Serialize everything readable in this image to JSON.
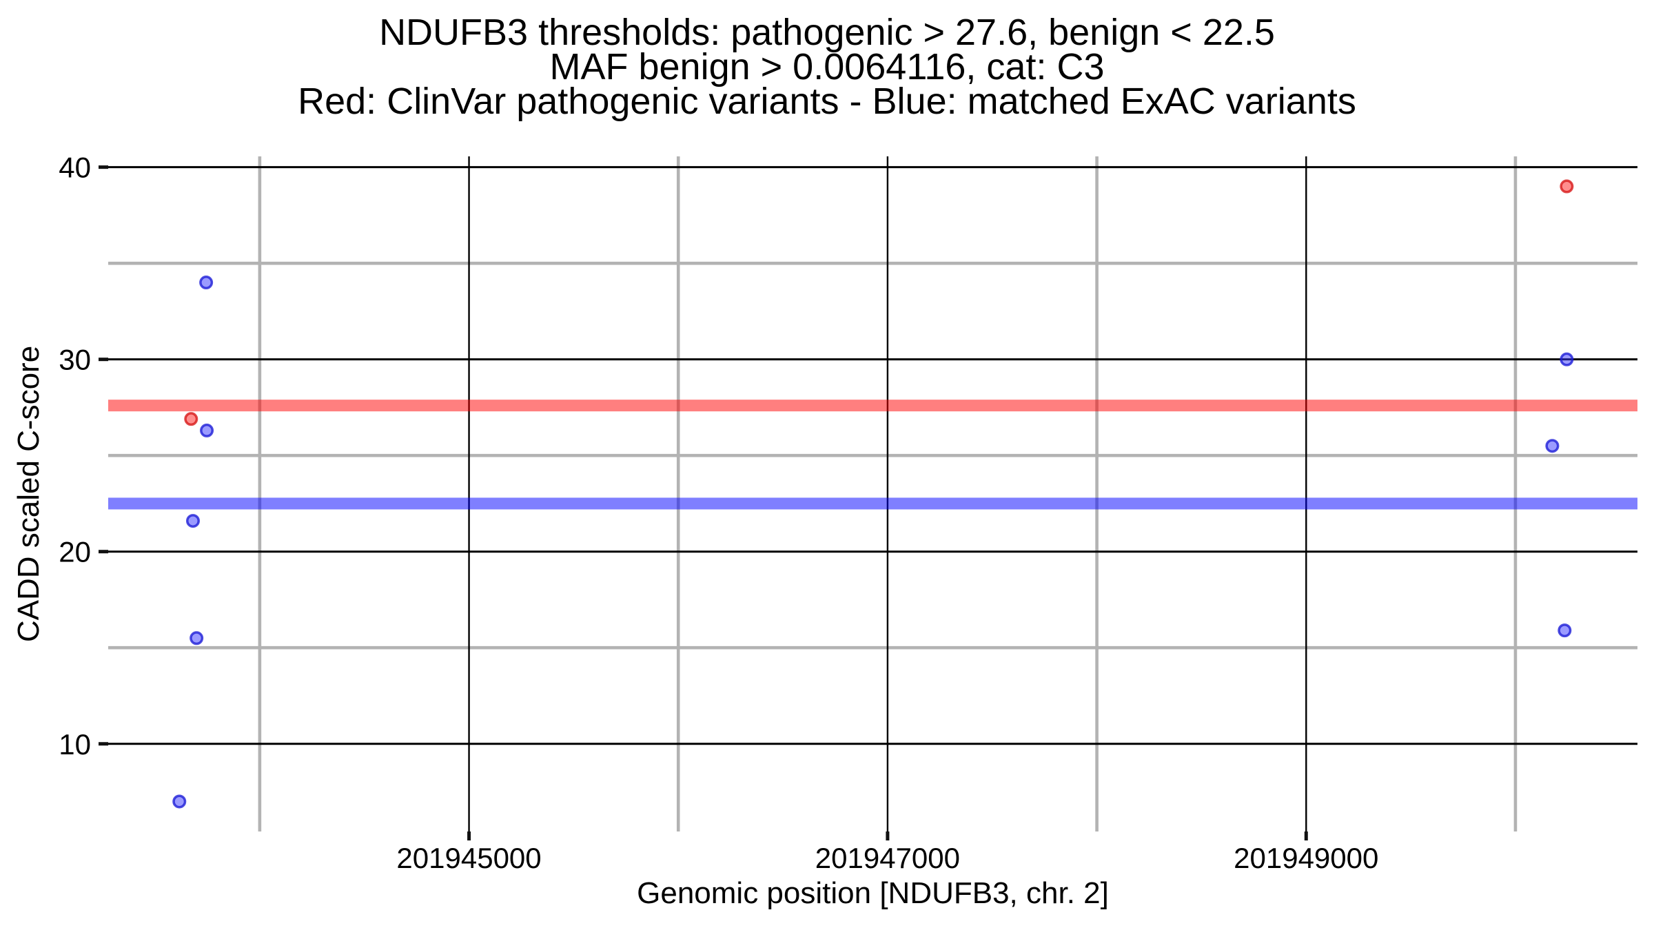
{
  "chart_data": {
    "type": "scatter",
    "title": "NDUFB3 thresholds: pathogenic > 27.6, benign < 22.5",
    "subtitle": "MAF benign > 0.0064116, cat: C3",
    "legend_note": "Red: ClinVar pathogenic variants - Blue: matched ExAC variants",
    "xlabel": "Genomic position [NDUFB3, chr. 2]",
    "ylabel": "CADD scaled C-score",
    "gene": "NDUFB3",
    "chromosome": "2",
    "category": "C3",
    "maf_benign_threshold": 0.0064116,
    "xlim": [
      201943276,
      201950583
    ],
    "ylim": [
      5.44,
      40.56
    ],
    "x_ticks": [
      201945000,
      201947000,
      201949000
    ],
    "x_tick_labels": [
      "201945000",
      "201947000",
      "201949000"
    ],
    "x_minor_gridlines": [
      201944000,
      201946000,
      201948000,
      201950000
    ],
    "y_ticks": [
      40,
      30,
      20,
      10
    ],
    "y_tick_labels": [
      "40",
      "30",
      "20",
      "10"
    ],
    "y_minor_gridlines": [
      35,
      25,
      15
    ],
    "grid": {
      "major_color": "#000000",
      "minor_color": "#B3B3B3"
    },
    "thresholds": [
      {
        "name": "pathogenic",
        "comparison": ">",
        "value": 27.6,
        "color": "rgba(255,0,0,0.5)"
      },
      {
        "name": "benign",
        "comparison": "<",
        "value": 22.5,
        "color": "rgba(0,0,255,0.5)"
      }
    ],
    "series": [
      {
        "name": "ClinVar pathogenic variants",
        "color_label": "Red",
        "fill": "rgba(255,30,30,0.5)",
        "stroke": "rgba(215,25,25,0.8)",
        "points": [
          {
            "x": 201943672,
            "y": 26.9
          },
          {
            "x": 201950245,
            "y": 39.0
          }
        ]
      },
      {
        "name": "matched ExAC variants",
        "color_label": "Blue",
        "fill": "rgba(55,55,255,0.5)",
        "stroke": "rgba(30,30,215,0.8)",
        "points": [
          {
            "x": 201943616,
            "y": 7.0
          },
          {
            "x": 201943681,
            "y": 21.6
          },
          {
            "x": 201943698,
            "y": 15.5
          },
          {
            "x": 201943744,
            "y": 34.0
          },
          {
            "x": 201943747,
            "y": 26.3
          },
          {
            "x": 201950176,
            "y": 25.5
          },
          {
            "x": 201950235,
            "y": 15.9
          },
          {
            "x": 201950245,
            "y": 30.0
          }
        ]
      }
    ]
  }
}
